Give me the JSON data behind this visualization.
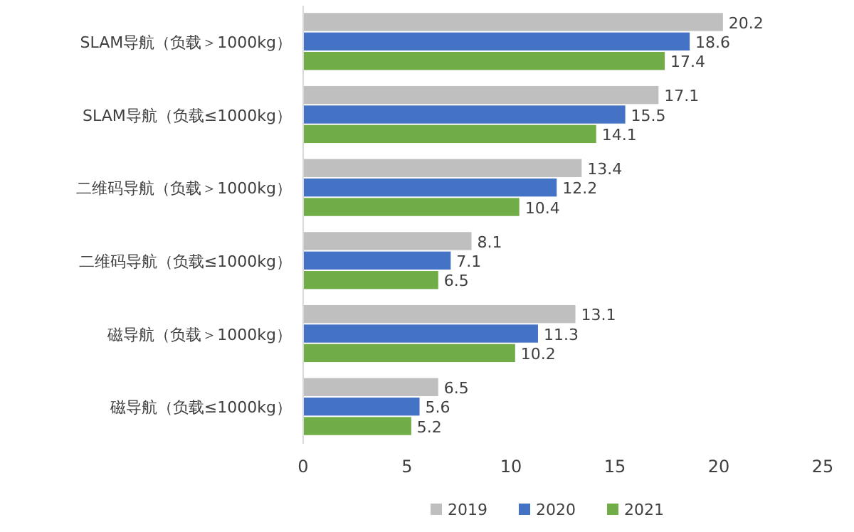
{
  "chart_data": {
    "type": "bar",
    "orientation": "horizontal",
    "categories": [
      "SLAM导航（负载＞1000kg）",
      "SLAM导航（负载≤1000kg）",
      "二维码导航（负载＞1000kg）",
      "二维码导航（负载≤1000kg）",
      "磁导航（负载＞1000kg）",
      "磁导航（负载≤1000kg）"
    ],
    "series": [
      {
        "name": "2019",
        "color": "#bfbfbf",
        "values": [
          20.2,
          17.1,
          13.4,
          8.1,
          13.1,
          6.5
        ]
      },
      {
        "name": "2020",
        "color": "#4472c4",
        "values": [
          18.6,
          15.5,
          12.2,
          7.1,
          11.3,
          5.6
        ]
      },
      {
        "name": "2021",
        "color": "#70ad47",
        "values": [
          17.4,
          14.1,
          10.4,
          6.5,
          10.2,
          5.2
        ]
      }
    ],
    "xlim": [
      0,
      25
    ],
    "xticks": [
      0,
      5,
      10,
      15,
      20,
      25
    ],
    "data_labels": true,
    "legend": "bottom",
    "grid": false
  }
}
